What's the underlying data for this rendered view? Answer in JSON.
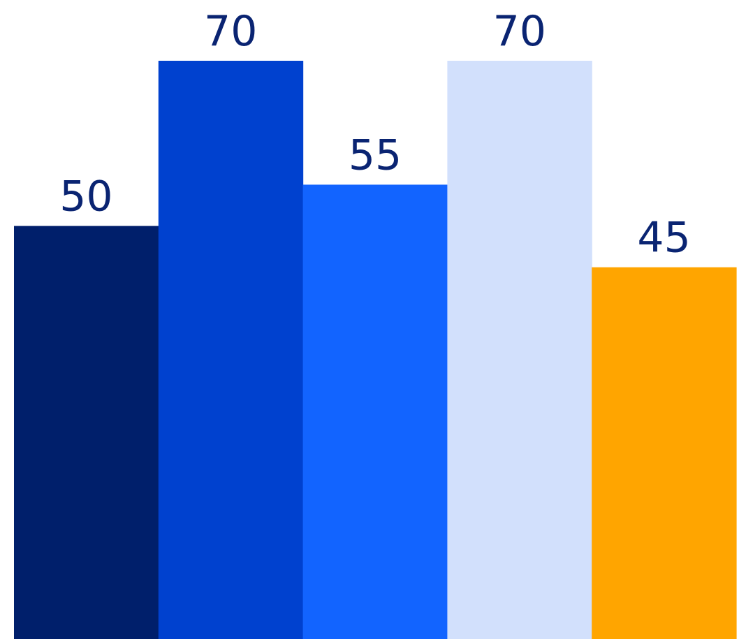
{
  "chart_data": {
    "type": "bar",
    "title": "",
    "xlabel": "",
    "ylabel": "",
    "categories": [
      "",
      "",
      "",
      "",
      ""
    ],
    "values": [
      50,
      70,
      55,
      70,
      45
    ],
    "data_labels": [
      "50",
      "70",
      "55",
      "70",
      "45"
    ],
    "colors": [
      "#001f6b",
      "#0041cf",
      "#1264ff",
      "#d2e0fc",
      "#ffa500"
    ],
    "label_color": "#0a2472",
    "ylim": [
      0,
      70
    ],
    "grid": false,
    "legend": "none"
  }
}
